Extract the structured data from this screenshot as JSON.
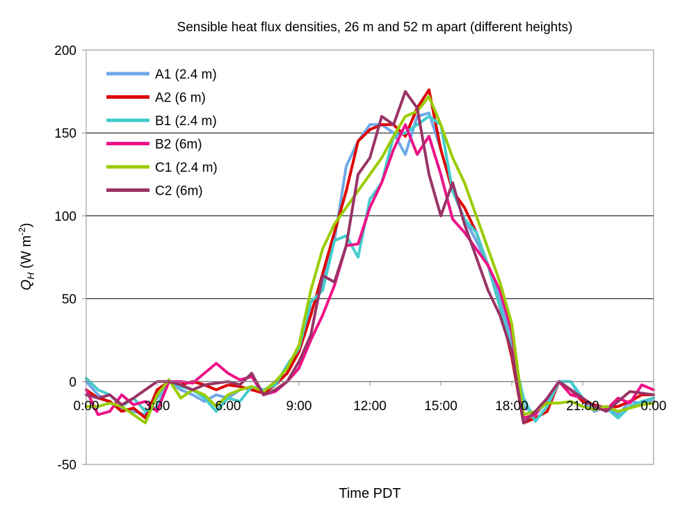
{
  "chart_data": {
    "type": "line",
    "title": "Sensible heat flux densities, 26 m and 52 m apart (different heights)",
    "xlabel": "Time PDT",
    "ylabel": "Q_H (W m^-2)",
    "ylabel_parts": {
      "main": "Q",
      "sub": "H",
      "unit": " (W m",
      "sup": "-2",
      "close": ")"
    },
    "xlim": [
      0,
      24
    ],
    "ylim": [
      -50,
      200
    ],
    "yticks": [
      -50,
      0,
      50,
      100,
      150,
      200
    ],
    "ytick_labels": [
      "-50",
      "0",
      "50",
      "100",
      "150",
      "200"
    ],
    "xticks": [
      0,
      3,
      6,
      9,
      12,
      15,
      18,
      21,
      24
    ],
    "xtick_labels": [
      "0:00",
      "3:00",
      "6:00",
      "9:00",
      "12:00",
      "15:00",
      "18:00",
      "21:00",
      "0:00"
    ],
    "grid": "horizontal",
    "legend_position": "top-left",
    "series": [
      {
        "name": "A1 (2.4 m)",
        "color": "#6fa8e8",
        "x": [
          0,
          0.5,
          1,
          1.5,
          2,
          2.5,
          3,
          3.5,
          4,
          4.5,
          5,
          5.5,
          6,
          6.5,
          7,
          7.5,
          8,
          8.5,
          9,
          9.5,
          10,
          10.5,
          11,
          11.5,
          12,
          12.5,
          13,
          13.5,
          14,
          14.5,
          15,
          15.5,
          16,
          16.5,
          17,
          17.5,
          18,
          18.5,
          19,
          19.5,
          20,
          20.5,
          21,
          21.5,
          22,
          22.5,
          23,
          23.5,
          24
        ],
        "y": [
          0,
          -8,
          -13,
          -16,
          -18,
          -20,
          -10,
          0,
          -5,
          -8,
          -12,
          -8,
          -10,
          -5,
          -3,
          -6,
          0,
          5,
          22,
          42,
          60,
          85,
          130,
          145,
          155,
          155,
          150,
          137,
          160,
          162,
          140,
          115,
          98,
          85,
          70,
          50,
          25,
          -15,
          -20,
          -12,
          0,
          0,
          -12,
          -18,
          -15,
          -20,
          -12,
          -13,
          -12
        ]
      },
      {
        "name": "A2 (6 m)",
        "color": "#dd0000",
        "x": [
          0,
          0.5,
          1,
          1.5,
          2,
          2.5,
          3,
          3.5,
          4,
          4.5,
          5,
          5.5,
          6,
          6.5,
          7,
          7.5,
          8,
          8.5,
          9,
          9.5,
          10,
          10.5,
          11,
          11.5,
          12,
          12.5,
          13,
          13.5,
          14,
          14.5,
          15,
          15.5,
          16,
          16.5,
          17,
          17.5,
          18,
          18.5,
          19,
          19.5,
          20,
          20.5,
          21,
          21.5,
          22,
          22.5,
          23,
          23.5,
          24
        ],
        "y": [
          -5,
          -10,
          -12,
          -18,
          -16,
          -22,
          -5,
          0,
          -2,
          0,
          -2,
          -5,
          -2,
          -3,
          -5,
          -7,
          -2,
          5,
          18,
          40,
          65,
          90,
          115,
          145,
          152,
          155,
          155,
          148,
          165,
          176,
          140,
          115,
          105,
          90,
          70,
          45,
          15,
          -25,
          -22,
          -18,
          0,
          -5,
          -12,
          -14,
          -16,
          -15,
          -12,
          -8,
          -8
        ]
      },
      {
        "name": "B1 (2.4 m)",
        "color": "#44cccc",
        "x": [
          0,
          0.5,
          1,
          1.5,
          2,
          2.5,
          3,
          3.5,
          4,
          4.5,
          5,
          5.5,
          6,
          6.5,
          7,
          7.5,
          8,
          8.5,
          9,
          9.5,
          10,
          10.5,
          11,
          11.5,
          12,
          12.5,
          13,
          13.5,
          14,
          14.5,
          15,
          15.5,
          16,
          16.5,
          17,
          17.5,
          18,
          18.5,
          19,
          19.5,
          20,
          20.5,
          21,
          21.5,
          22,
          22.5,
          23,
          23.5,
          24
        ],
        "y": [
          2,
          -5,
          -8,
          -15,
          -10,
          -18,
          -15,
          0,
          -3,
          -5,
          -10,
          -18,
          -10,
          -12,
          -3,
          -5,
          -2,
          10,
          20,
          48,
          55,
          85,
          88,
          75,
          110,
          120,
          148,
          150,
          155,
          160,
          155,
          115,
          98,
          90,
          70,
          45,
          20,
          -10,
          -24,
          -15,
          0,
          0,
          -10,
          -15,
          -16,
          -22,
          -15,
          -12,
          -10
        ]
      },
      {
        "name": "B2 (6m)",
        "color": "#ee1188",
        "x": [
          0,
          0.5,
          1,
          1.5,
          2,
          2.5,
          3,
          3.5,
          4,
          4.5,
          5,
          5.5,
          6,
          6.5,
          7,
          7.5,
          8,
          8.5,
          9,
          9.5,
          10,
          10.5,
          11,
          11.5,
          12,
          12.5,
          13,
          13.5,
          14,
          14.5,
          15,
          15.5,
          16,
          16.5,
          17,
          17.5,
          18,
          18.5,
          19,
          19.5,
          20,
          20.5,
          21,
          21.5,
          22,
          22.5,
          23,
          23.5,
          24
        ],
        "y": [
          -5,
          -20,
          -18,
          -8,
          -14,
          -12,
          -18,
          0,
          0,
          -1,
          5,
          11,
          5,
          1,
          3,
          -8,
          -6,
          0,
          8,
          25,
          40,
          58,
          82,
          83,
          105,
          120,
          140,
          155,
          137,
          148,
          125,
          98,
          90,
          80,
          70,
          55,
          30,
          -22,
          -20,
          -10,
          0,
          -8,
          -10,
          -15,
          -17,
          -10,
          -13,
          -2,
          -5
        ]
      },
      {
        "name": "C1 (2.4 m)",
        "color": "#99cc00",
        "x": [
          0,
          0.5,
          1,
          1.5,
          2,
          2.5,
          3,
          3.5,
          4,
          4.5,
          5,
          5.5,
          6,
          6.5,
          7,
          7.5,
          8,
          8.5,
          9,
          9.5,
          10,
          10.5,
          11,
          11.5,
          12,
          12.5,
          13,
          13.5,
          14,
          14.5,
          15,
          15.5,
          16,
          16.5,
          17,
          17.5,
          18,
          18.5,
          19,
          19.5,
          20,
          20.5,
          21,
          21.5,
          22,
          22.5,
          23,
          23.5,
          24
        ],
        "y": [
          -15,
          -15,
          -13,
          -15,
          -20,
          -25,
          -8,
          1,
          -10,
          -5,
          -8,
          -15,
          -8,
          -5,
          -3,
          -6,
          0,
          8,
          22,
          55,
          80,
          95,
          105,
          115,
          125,
          135,
          148,
          160,
          163,
          172,
          155,
          135,
          120,
          100,
          80,
          60,
          35,
          -20,
          -18,
          -13,
          -13,
          -12,
          -15,
          -17,
          -15,
          -18,
          -16,
          -14,
          -13
        ]
      },
      {
        "name": "C2 (6m)",
        "color": "#993366",
        "x": [
          0,
          0.5,
          1,
          1.5,
          2,
          2.5,
          3,
          3.5,
          4,
          4.5,
          5,
          5.5,
          6,
          6.5,
          7,
          7.5,
          8,
          8.5,
          9,
          9.5,
          10,
          10.5,
          11,
          11.5,
          12,
          12.5,
          13,
          13.5,
          14,
          14.5,
          15,
          15.5,
          16,
          16.5,
          17,
          17.5,
          18,
          18.5,
          19,
          19.5,
          20,
          20.5,
          21,
          21.5,
          22,
          22.5,
          23,
          23.5,
          24
        ],
        "y": [
          -8,
          -10,
          -8,
          -14,
          -10,
          -5,
          0,
          0,
          -2,
          -5,
          -2,
          -1,
          0,
          -2,
          5,
          -8,
          -5,
          0,
          12,
          28,
          64,
          60,
          82,
          125,
          135,
          160,
          155,
          175,
          165,
          125,
          100,
          120,
          95,
          75,
          55,
          40,
          18,
          -25,
          -18,
          -10,
          0,
          -5,
          -10,
          -15,
          -18,
          -12,
          -6,
          -7,
          -8
        ]
      }
    ]
  }
}
